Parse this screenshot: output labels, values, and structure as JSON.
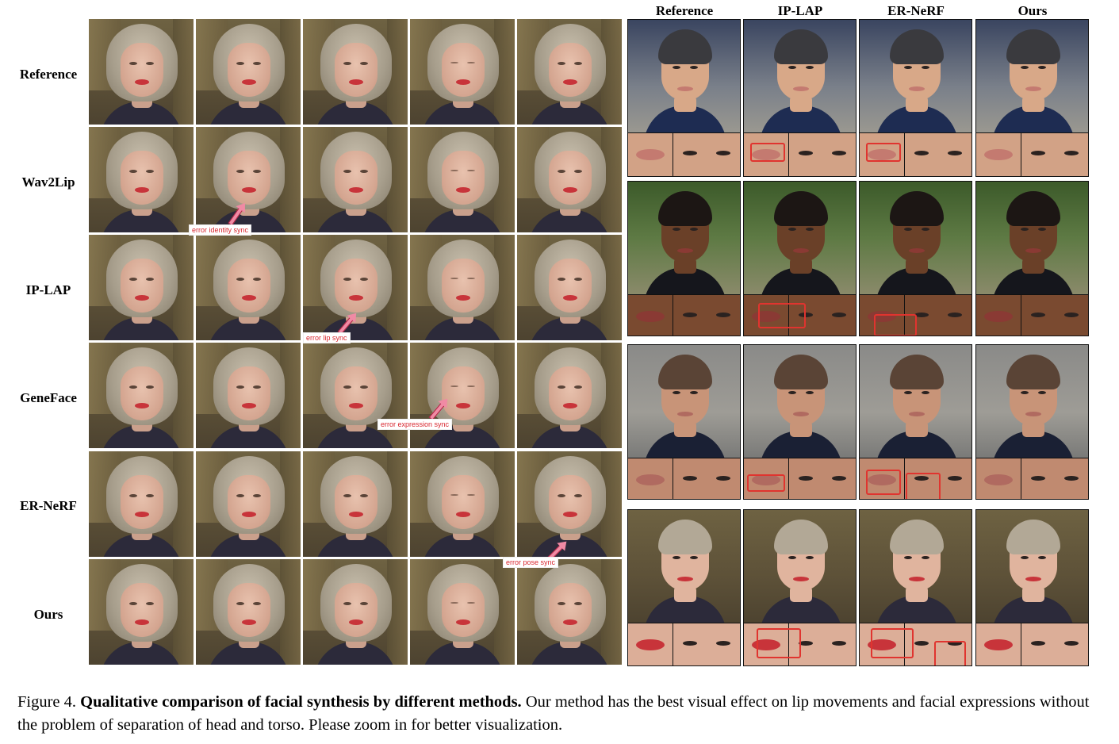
{
  "left_panel": {
    "rows": [
      {
        "label": "Reference"
      },
      {
        "label": "Wav2Lip"
      },
      {
        "label": "IP-LAP"
      },
      {
        "label": "GeneFace"
      },
      {
        "label": "ER-NeRF"
      },
      {
        "label": "Ours"
      }
    ],
    "annotations": [
      {
        "text": "error identity sync"
      },
      {
        "text": "error lip sync"
      },
      {
        "text": "error expression sync"
      },
      {
        "text": "error pose sync"
      }
    ]
  },
  "right_panel": {
    "columns": [
      {
        "label": "Reference"
      },
      {
        "label": "IP-LAP"
      },
      {
        "label": "ER-NeRF"
      },
      {
        "label": "Ours"
      }
    ]
  },
  "caption": {
    "prefix": "Figure 4. ",
    "bold": "Qualitative comparison of facial synthesis by different methods.",
    "rest": " Our method has the best visual effect on lip movements and facial expressions without the problem of separation of head and torso. Please zoom in for better visualization."
  }
}
